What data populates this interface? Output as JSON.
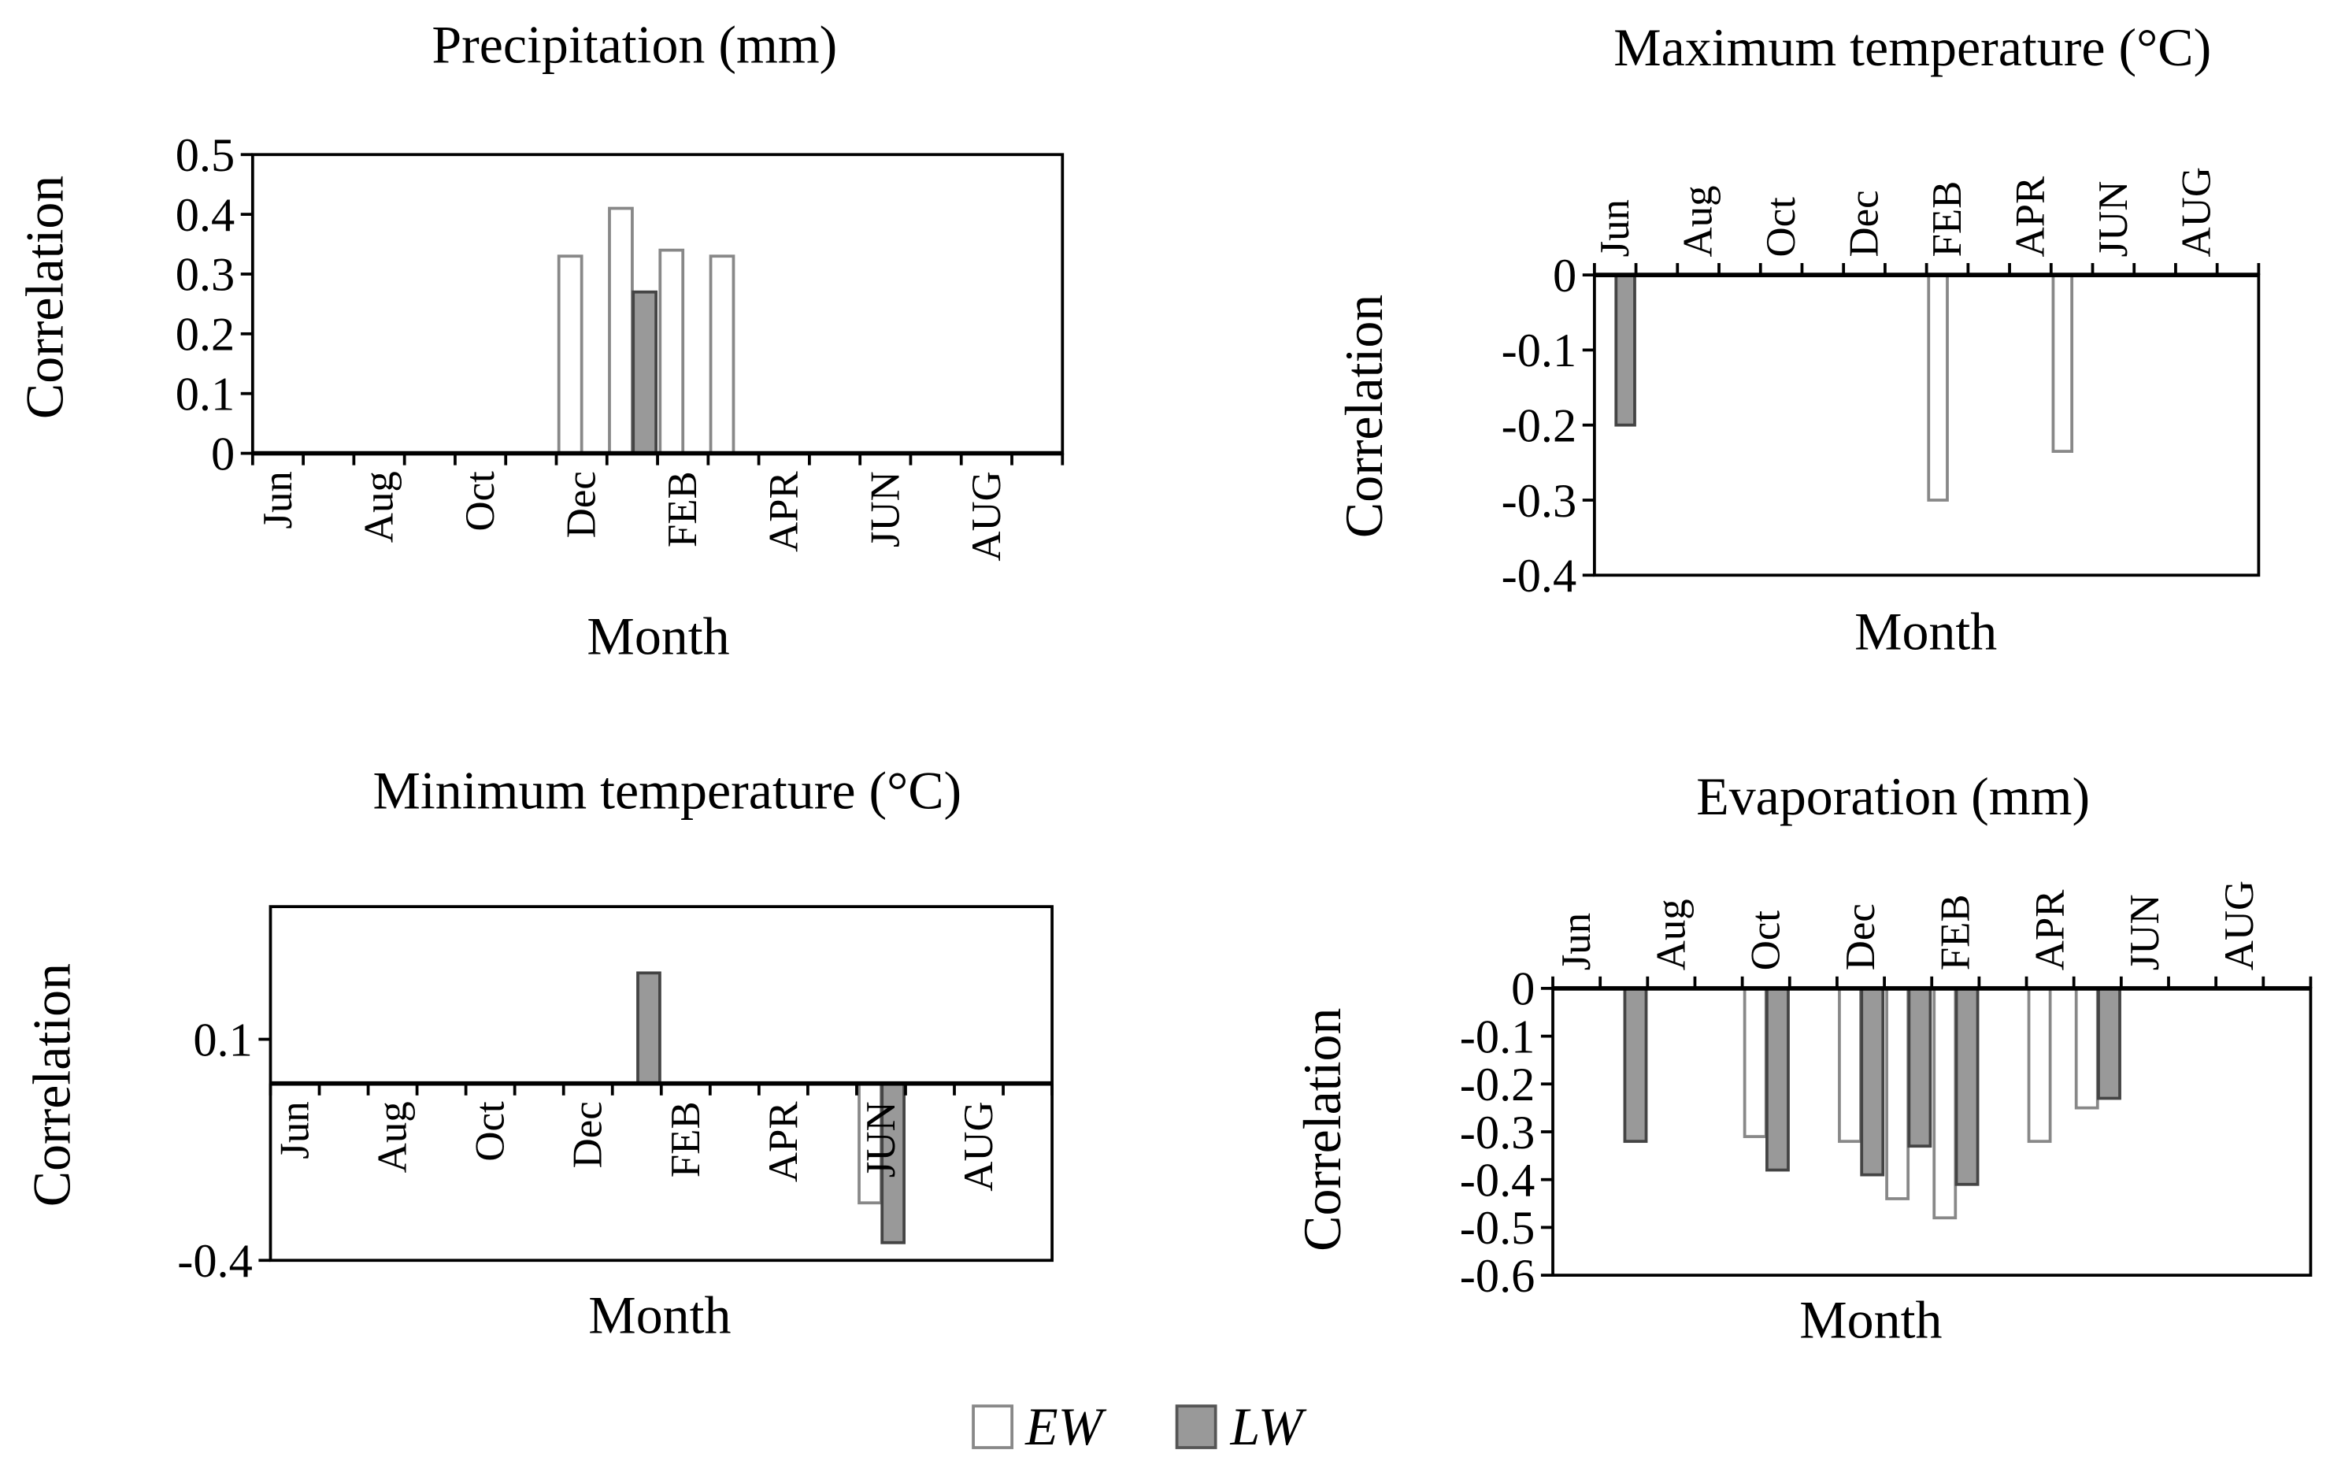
{
  "chart_data": [
    {
      "type": "bar",
      "title": "Precipitation (mm)",
      "x_label": "Month",
      "y_label": "Correlation",
      "categories": [
        "Jun",
        null,
        "Aug",
        null,
        "Oct",
        null,
        "Dec",
        null,
        "FEB",
        null,
        "APR",
        null,
        "JUN",
        null,
        "AUG",
        null
      ],
      "series": [
        {
          "name": "EW",
          "color": "#ffffff",
          "values": [
            null,
            null,
            null,
            null,
            null,
            null,
            0.33,
            0.41,
            0.34,
            0.33,
            null,
            null,
            null,
            null,
            null,
            null
          ]
        },
        {
          "name": "LW",
          "color": "#999999",
          "values": [
            null,
            null,
            null,
            null,
            null,
            null,
            null,
            0.27,
            null,
            null,
            null,
            null,
            null,
            null,
            null,
            null
          ]
        }
      ],
      "ylim": [
        0,
        0.5
      ],
      "yticks": [
        0,
        0.1,
        0.2,
        0.3,
        0.4,
        0.5
      ]
    },
    {
      "type": "bar",
      "title": "Maximum temperature (°C)",
      "x_label": "Month",
      "y_label": "Correlation",
      "categories": [
        "Jun",
        null,
        "Aug",
        null,
        "Oct",
        null,
        "Dec",
        null,
        "FEB",
        null,
        "APR",
        null,
        "JUN",
        null,
        "AUG",
        null
      ],
      "series": [
        {
          "name": "EW",
          "color": "#ffffff",
          "values": [
            null,
            null,
            null,
            null,
            null,
            null,
            null,
            null,
            -0.3,
            null,
            null,
            -0.235,
            null,
            null,
            null,
            null
          ]
        },
        {
          "name": "LW",
          "color": "#999999",
          "values": [
            -0.2,
            null,
            null,
            null,
            null,
            null,
            null,
            null,
            null,
            null,
            null,
            null,
            null,
            null,
            null,
            null
          ]
        }
      ],
      "ylim": [
        -0.4,
        0
      ],
      "yticks": [
        0,
        -0.1,
        -0.2,
        -0.3,
        -0.4
      ]
    },
    {
      "type": "bar",
      "title": "Minimum temperature (°C)",
      "x_label": "Month",
      "y_label": "Correlation",
      "categories": [
        "Jun",
        null,
        "Aug",
        null,
        "Oct",
        null,
        "Dec",
        null,
        "FEB",
        null,
        "APR",
        null,
        "JUN",
        null,
        "AUG",
        null
      ],
      "series": [
        {
          "name": "EW",
          "color": "#ffffff",
          "values": [
            null,
            null,
            null,
            null,
            null,
            null,
            null,
            null,
            null,
            null,
            null,
            null,
            -0.27,
            null,
            null,
            null
          ]
        },
        {
          "name": "LW",
          "color": "#999999",
          "values": [
            null,
            null,
            null,
            null,
            null,
            null,
            null,
            0.25,
            null,
            null,
            null,
            null,
            -0.36,
            null,
            null,
            null
          ]
        }
      ],
      "ylim": [
        -0.4,
        0.4
      ],
      "yticks": [
        0.1,
        -0.4
      ]
    },
    {
      "type": "bar",
      "title": "Evaporation (mm)",
      "x_label": "Month",
      "y_label": "Correlation",
      "categories": [
        "Jun",
        null,
        "Aug",
        null,
        "Oct",
        null,
        "Dec",
        null,
        "FEB",
        null,
        "APR",
        null,
        "JUN",
        null,
        "AUG",
        null
      ],
      "series": [
        {
          "name": "EW",
          "color": "#ffffff",
          "values": [
            null,
            null,
            null,
            null,
            -0.31,
            null,
            -0.32,
            -0.44,
            -0.48,
            null,
            -0.32,
            -0.25,
            null,
            null,
            null,
            null
          ]
        },
        {
          "name": "LW",
          "color": "#999999",
          "values": [
            null,
            -0.32,
            null,
            null,
            -0.38,
            null,
            -0.39,
            -0.33,
            -0.41,
            null,
            null,
            -0.23,
            null,
            null,
            null,
            null
          ]
        }
      ],
      "ylim": [
        -0.6,
        0
      ],
      "yticks": [
        0,
        -0.1,
        -0.2,
        -0.3,
        -0.4,
        -0.5,
        -0.6
      ]
    }
  ]
}
